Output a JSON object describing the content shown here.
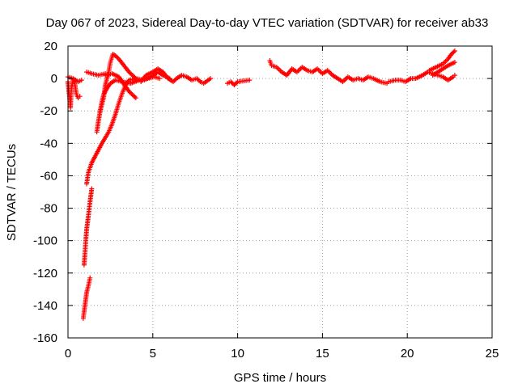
{
  "chart_data": {
    "type": "scatter",
    "title": "Day 067 of 2023, Sidereal Day-to-day VTEC variation (SDTVAR) for receiver ab33",
    "xlabel": "GPS time / hours",
    "ylabel": "SDTVAR / TECUs",
    "xlim": [
      0,
      25
    ],
    "ylim": [
      -160,
      20
    ],
    "xticks": [
      0,
      5,
      10,
      15,
      20,
      25
    ],
    "yticks": [
      -160,
      -140,
      -120,
      -100,
      -80,
      -60,
      -40,
      -20,
      0,
      20
    ],
    "grid": true,
    "marker": "+",
    "series": [
      {
        "name": "SDTVAR",
        "color": "#ff0000",
        "segments": [
          [
            [
              0,
              -2
            ],
            [
              0.05,
              -8
            ],
            [
              0.1,
              -12
            ],
            [
              0.15,
              -18
            ],
            [
              0.2,
              -6
            ],
            [
              0.3,
              -1
            ],
            [
              0.4,
              -3
            ],
            [
              0.5,
              -10
            ],
            [
              0.6,
              -12
            ],
            [
              0.7,
              -11
            ]
          ],
          [
            [
              0,
              1
            ],
            [
              0.3,
              0
            ],
            [
              0.6,
              -2
            ],
            [
              0.8,
              -1
            ]
          ],
          [
            [
              0.9,
              -148
            ],
            [
              0.95,
              -144
            ],
            [
              1.0,
              -140
            ],
            [
              1.05,
              -136
            ],
            [
              1.1,
              -132
            ],
            [
              1.2,
              -128
            ],
            [
              1.3,
              -123
            ]
          ],
          [
            [
              0.95,
              -115
            ],
            [
              1.0,
              -108
            ],
            [
              1.05,
              -100
            ],
            [
              1.1,
              -93
            ],
            [
              1.2,
              -85
            ],
            [
              1.3,
              -76
            ],
            [
              1.4,
              -68
            ]
          ],
          [
            [
              1.1,
              -65
            ],
            [
              1.2,
              -58
            ],
            [
              1.4,
              -52
            ],
            [
              1.7,
              -46
            ],
            [
              2.0,
              -40
            ],
            [
              2.4,
              -33
            ],
            [
              2.6,
              -28
            ],
            [
              2.8,
              -22
            ],
            [
              3.0,
              -15
            ],
            [
              3.2,
              -9
            ],
            [
              3.4,
              -4
            ],
            [
              3.6,
              -1
            ],
            [
              4.0,
              0
            ],
            [
              4.5,
              -1
            ],
            [
              5.0,
              2
            ],
            [
              5.3,
              4
            ],
            [
              5.6,
              2
            ],
            [
              6.0,
              0
            ]
          ],
          [
            [
              1.7,
              -33
            ],
            [
              1.8,
              -26
            ],
            [
              1.9,
              -20
            ],
            [
              2.0,
              -14
            ],
            [
              2.1,
              -10
            ],
            [
              2.3,
              -6
            ],
            [
              2.5,
              -3
            ],
            [
              2.8,
              -1
            ],
            [
              3.2,
              -2
            ],
            [
              3.7,
              -3
            ],
            [
              4.2,
              -1
            ],
            [
              4.7,
              0
            ],
            [
              5.1,
              1
            ],
            [
              5.4,
              0
            ]
          ],
          [
            [
              1.9,
              -20
            ],
            [
              2.1,
              -12
            ],
            [
              2.2,
              -4
            ],
            [
              2.4,
              4
            ],
            [
              2.5,
              10
            ],
            [
              2.65,
              15
            ],
            [
              2.8,
              14
            ],
            [
              3.0,
              12
            ],
            [
              3.3,
              8
            ],
            [
              3.6,
              4
            ],
            [
              3.8,
              2
            ],
            [
              4.0,
              0
            ]
          ],
          [
            [
              2.2,
              2
            ],
            [
              2.6,
              3
            ],
            [
              3.0,
              1
            ],
            [
              3.2,
              -2
            ],
            [
              3.4,
              -5
            ],
            [
              3.6,
              -8
            ],
            [
              3.8,
              -10
            ],
            [
              4.0,
              -12
            ]
          ],
          [
            [
              1.1,
              4
            ],
            [
              1.4,
              3
            ],
            [
              1.8,
              2
            ],
            [
              2.2,
              3
            ]
          ],
          [
            [
              4.3,
              -2
            ],
            [
              4.6,
              2
            ],
            [
              5.0,
              4
            ],
            [
              5.3,
              6
            ],
            [
              5.6,
              4
            ],
            [
              5.9,
              0
            ],
            [
              6.2,
              -2
            ],
            [
              6.4,
              0
            ],
            [
              6.7,
              2
            ],
            [
              7.0,
              1
            ],
            [
              7.3,
              -1
            ],
            [
              7.6,
              0
            ],
            [
              7.8,
              -2
            ],
            [
              8.0,
              -3
            ],
            [
              8.4,
              0
            ]
          ],
          [
            [
              9.4,
              -3
            ],
            [
              9.6,
              -2
            ],
            [
              9.8,
              -4
            ],
            [
              10.0,
              -2
            ],
            [
              10.7,
              -1
            ]
          ],
          [
            [
              11.9,
              11
            ],
            [
              12.0,
              8
            ],
            [
              12.3,
              7
            ],
            [
              12.6,
              4
            ],
            [
              12.9,
              2
            ],
            [
              13.2,
              6
            ],
            [
              13.5,
              4
            ],
            [
              13.8,
              7
            ],
            [
              14.1,
              5
            ],
            [
              14.4,
              4
            ],
            [
              14.7,
              6
            ],
            [
              15.0,
              3
            ],
            [
              15.3,
              5
            ],
            [
              15.6,
              2
            ],
            [
              15.9,
              0
            ],
            [
              16.2,
              -2
            ],
            [
              16.5,
              1
            ],
            [
              16.8,
              -1
            ],
            [
              17.1,
              0
            ],
            [
              17.4,
              -1
            ],
            [
              17.7,
              1
            ],
            [
              18.0,
              0
            ],
            [
              18.4,
              -2
            ],
            [
              18.8,
              -3
            ]
          ],
          [
            [
              18.9,
              -2
            ],
            [
              19.3,
              -1
            ],
            [
              19.6,
              -1
            ],
            [
              19.9,
              -2
            ],
            [
              20.2,
              0
            ],
            [
              20.5,
              0
            ],
            [
              20.9,
              2
            ],
            [
              21.2,
              4
            ],
            [
              21.5,
              3
            ],
            [
              21.8,
              2
            ],
            [
              22.1,
              1
            ],
            [
              22.4,
              -1
            ],
            [
              22.7,
              1
            ],
            [
              22.8,
              2
            ]
          ],
          [
            [
              21.3,
              5
            ],
            [
              21.7,
              7
            ],
            [
              22.1,
              9
            ],
            [
              22.4,
              12
            ],
            [
              22.6,
              15
            ],
            [
              22.8,
              17
            ]
          ],
          [
            [
              21.5,
              2
            ],
            [
              21.8,
              4
            ],
            [
              22.1,
              6
            ],
            [
              22.4,
              8
            ],
            [
              22.8,
              10
            ]
          ]
        ]
      }
    ]
  }
}
